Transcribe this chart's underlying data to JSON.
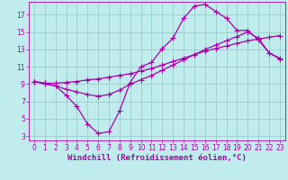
{
  "background_color": "#c0ecee",
  "grid_color": "#99cccc",
  "line_color": "#aa00aa",
  "marker": "+",
  "marker_size": 4,
  "line_width": 0.9,
  "xlabel": "Windchill (Refroidissement éolien,°C)",
  "xlabel_fontsize": 6.5,
  "tick_fontsize": 5.5,
  "xlim": [
    -0.5,
    23.5
  ],
  "ylim": [
    2.5,
    18.5
  ],
  "yticks": [
    3,
    5,
    7,
    9,
    11,
    13,
    15,
    17
  ],
  "xticks": [
    0,
    1,
    2,
    3,
    4,
    5,
    6,
    7,
    8,
    9,
    10,
    11,
    12,
    13,
    14,
    15,
    16,
    17,
    18,
    19,
    20,
    21,
    22,
    23
  ],
  "curve1_x": [
    0,
    1,
    2,
    3,
    4,
    5,
    6,
    7,
    8,
    9,
    10,
    11,
    12,
    13,
    14,
    15,
    16,
    17,
    18,
    19,
    20,
    21,
    22,
    23
  ],
  "curve1_y": [
    9.3,
    9.1,
    8.8,
    7.7,
    6.4,
    4.4,
    3.3,
    3.5,
    5.9,
    9.2,
    11.0,
    11.5,
    13.1,
    14.3,
    16.6,
    18.0,
    18.2,
    17.4,
    16.6,
    15.2,
    15.2,
    14.1,
    12.6,
    12.0
  ],
  "curve2_x": [
    0,
    1,
    2,
    3,
    4,
    5,
    6,
    7,
    8,
    9,
    10,
    11,
    12,
    13,
    14,
    15,
    16,
    17,
    18,
    19,
    20,
    21,
    22,
    23
  ],
  "curve2_y": [
    9.3,
    9.1,
    9.1,
    9.2,
    9.3,
    9.5,
    9.6,
    9.8,
    10.0,
    10.2,
    10.5,
    10.8,
    11.2,
    11.6,
    12.0,
    12.4,
    12.8,
    13.1,
    13.4,
    13.7,
    14.0,
    14.2,
    14.4,
    14.6
  ],
  "curve3_x": [
    0,
    1,
    2,
    3,
    4,
    5,
    6,
    7,
    8,
    9,
    10,
    11,
    12,
    13,
    14,
    15,
    16,
    17,
    18,
    19,
    20,
    21,
    22,
    23
  ],
  "curve3_y": [
    9.3,
    9.0,
    8.8,
    8.4,
    8.1,
    7.8,
    7.6,
    7.8,
    8.3,
    9.0,
    9.5,
    10.0,
    10.6,
    11.2,
    11.8,
    12.4,
    13.0,
    13.5,
    14.0,
    14.5,
    15.0,
    14.3,
    12.6,
    11.9
  ]
}
